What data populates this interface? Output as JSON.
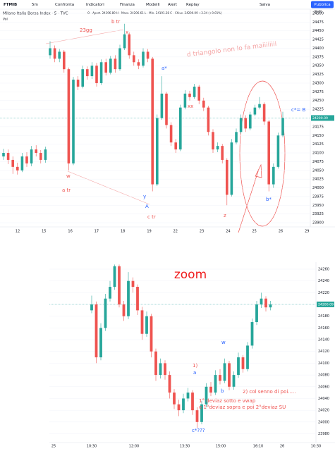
{
  "toolbar": {
    "symbol": "FTMIB",
    "interval": "5m",
    "items": [
      "Confronta",
      "Indicatori",
      "Finanza",
      "Modelli",
      "Alert",
      "Replay"
    ],
    "save": "Salva",
    "publish": "Pubblica"
  },
  "legend": {
    "name": "Milano Italia Borsa Index · 5 · TVC",
    "ohlc": "O - Apert. 24196.80  H - Mass. 24206.61  L - Min. 24191.38  C - Chius. 24200.09  +3.34 (+0.01%)",
    "volume": "Vol",
    "currency": "EUR"
  },
  "chart_data": [
    {
      "type": "candlestick",
      "up_color": "#26a69a",
      "down_color": "#ef5350",
      "x_labels": [
        "12",
        "15",
        "16",
        "17",
        "18",
        "19",
        "22",
        "23",
        "24",
        "25",
        "26",
        "29"
      ],
      "open": [
        24090,
        24100,
        24080,
        24060,
        24050,
        24090,
        24070,
        24110,
        24100,
        24080,
        24380,
        24400,
        24370,
        24390,
        24340,
        24070,
        24310,
        24290,
        24340,
        24320,
        24350,
        24300,
        24360,
        24330,
        24370,
        24340,
        24400,
        24440,
        24380,
        24360,
        24350,
        24390,
        24370,
        24010,
        24200,
        24270,
        24180,
        24130,
        24110,
        24230,
        24270,
        24260,
        24290,
        24250,
        24230,
        24160,
        24110,
        24120,
        24080,
        23980,
        24130,
        24160,
        24200,
        24170,
        24210,
        24230,
        24240,
        24190,
        24010,
        24060,
        24150
      ],
      "high": [
        24112,
        24110,
        24090,
        24072,
        24100,
        24102,
        24120,
        24122,
        24108,
        24118,
        24420,
        24408,
        24398,
        24395,
        24345,
        24318,
        24320,
        24350,
        24348,
        24360,
        24358,
        24368,
        24370,
        24378,
        24380,
        24410,
        24470,
        24445,
        24390,
        24368,
        24400,
        24398,
        24375,
        24210,
        24320,
        24275,
        24188,
        24140,
        24238,
        24280,
        24278,
        24298,
        24295,
        24258,
        24235,
        24168,
        24130,
        24126,
        24085,
        24140,
        24170,
        24210,
        24208,
        24218,
        24238,
        24260,
        24245,
        24195,
        24070,
        24158,
        24218
      ],
      "low": [
        24080,
        24068,
        24040,
        24038,
        24045,
        24060,
        24062,
        24090,
        24070,
        24072,
        24370,
        24360,
        24360,
        24330,
        24050,
        24065,
        24280,
        24285,
        24310,
        24312,
        24290,
        24295,
        24322,
        24325,
        24330,
        24335,
        24395,
        24370,
        24350,
        24340,
        24345,
        24360,
        23990,
        24005,
        24195,
        24170,
        24120,
        24100,
        24105,
        24225,
        24250,
        24255,
        24240,
        24220,
        24150,
        24100,
        24102,
        24070,
        23950,
        23975,
        24125,
        24155,
        24160,
        24165,
        24205,
        24225,
        24180,
        23990,
        24000,
        24055,
        24145
      ],
      "close": [
        24100,
        24080,
        24060,
        24050,
        24090,
        24070,
        24110,
        24100,
        24080,
        24110,
        24400,
        24370,
        24390,
        24340,
        24070,
        24310,
        24290,
        24340,
        24320,
        24350,
        24300,
        24360,
        24330,
        24370,
        24340,
        24400,
        24440,
        24380,
        24360,
        24350,
        24390,
        24370,
        24010,
        24200,
        24270,
        24180,
        24130,
        24110,
        24230,
        24270,
        24260,
        24290,
        24250,
        24230,
        24160,
        24110,
        24120,
        24080,
        23980,
        24130,
        24160,
        24200,
        24170,
        24210,
        24230,
        24240,
        24190,
        24010,
        24060,
        24150,
        24200
      ],
      "ylim": [
        23888,
        24512
      ],
      "yticks": [
        23900,
        23925,
        23950,
        23975,
        24000,
        24025,
        24050,
        24075,
        24100,
        24125,
        24150,
        24175,
        24200,
        24225,
        24250,
        24275,
        24300,
        24325,
        24350,
        24375,
        24400,
        24425,
        24450,
        24475,
        24500
      ],
      "last_price": 24200.09,
      "annotations": [
        "23gg",
        "b tr",
        "x",
        "d triangolo non lo fa maiiiiiiii",
        "a*",
        "xx",
        "c*= B",
        "w",
        "a tr",
        "y",
        "A",
        "c tr",
        "z",
        "b*"
      ]
    },
    {
      "type": "candlestick",
      "up_color": "#26a69a",
      "down_color": "#ef5350",
      "title": "zoom",
      "x_labels": [
        "25",
        "10:30",
        "12:00",
        "13:30",
        "15:00",
        "16:10",
        "26",
        "10:30"
      ],
      "open": [
        24190,
        24200,
        24110,
        24160,
        24210,
        24230,
        24265,
        24200,
        24180,
        24240,
        24230,
        24190,
        24150,
        24180,
        24120,
        24080,
        24100,
        24080,
        24050,
        24030,
        24020,
        24040,
        24050,
        24020,
        24000,
        24030,
        24060,
        24050,
        24080,
        24070,
        24100,
        24060,
        24080,
        24110,
        24090,
        24130,
        24170,
        24200,
        24210,
        24195
      ],
      "high": [
        24215,
        24205,
        24168,
        24218,
        24240,
        24268,
        24268,
        24206,
        24255,
        24246,
        24234,
        24196,
        24188,
        24184,
        24125,
        24108,
        24105,
        24086,
        24056,
        24038,
        24048,
        24058,
        24054,
        24025,
        24036,
        24066,
        24068,
        24088,
        24090,
        24108,
        24104,
        24086,
        24118,
        24114,
        24136,
        24176,
        24206,
        24220,
        24214,
        24206
      ],
      "low": [
        24185,
        24100,
        24105,
        24155,
        24205,
        24225,
        24195,
        24172,
        24175,
        24220,
        24182,
        24140,
        24145,
        24110,
        24070,
        24074,
        24072,
        24040,
        24022,
        24010,
        24015,
        24035,
        24012,
        23990,
        23996,
        24025,
        24044,
        24046,
        24064,
        24066,
        24054,
        24055,
        24075,
        24084,
        24086,
        24125,
        24165,
        24194,
        24188,
        24190
      ],
      "close": [
        24200,
        24110,
        24160,
        24210,
        24230,
        24265,
        24200,
        24180,
        24240,
        24230,
        24190,
        24150,
        24180,
        24120,
        24080,
        24100,
        24080,
        24050,
        24030,
        24020,
        24040,
        24050,
        24020,
        24000,
        24030,
        24060,
        24050,
        24080,
        24070,
        24100,
        24060,
        24080,
        24110,
        24090,
        24130,
        24170,
        24200,
        24210,
        24195,
        24200
      ],
      "ylim": [
        23965,
        24272
      ],
      "yticks": [
        23980,
        24000,
        24020,
        24040,
        24060,
        24080,
        24100,
        24120,
        24140,
        24160,
        24180,
        24200,
        24220,
        24240,
        24260
      ],
      "last_price": 24200.09,
      "annotations": [
        "1)",
        "a",
        "w",
        "b",
        "2) col senno di poi.....",
        "1° deviaz sotto  e vwap",
        "e 1°deviaz sopra e poi 2°deviaz SU",
        "c*???"
      ]
    }
  ]
}
